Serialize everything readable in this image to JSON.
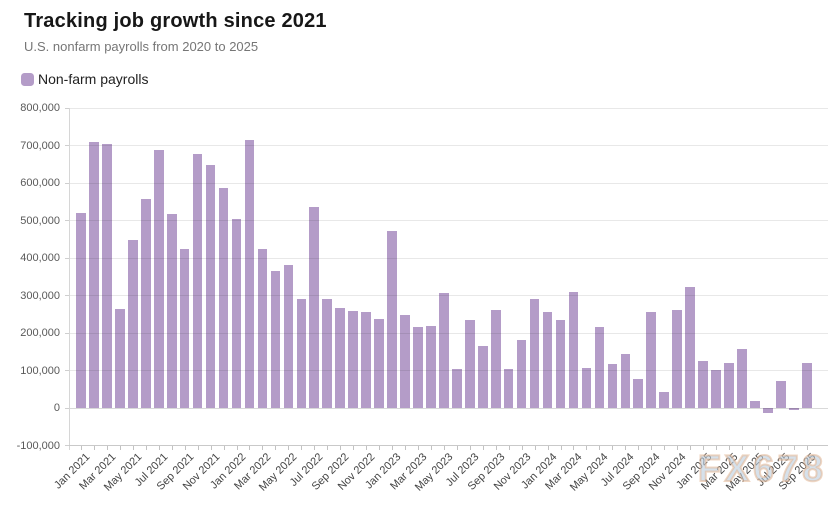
{
  "header": {
    "title": "Tracking job growth since 2021",
    "subtitle": "U.S. nonfarm payrolls from 2020 to 2025"
  },
  "legend": {
    "label": "Non-farm payrolls",
    "swatch_color": "#b49cc8"
  },
  "watermark": {
    "text": "FX678"
  },
  "chart_data": {
    "type": "bar",
    "title": "Tracking job growth since 2021",
    "subtitle": "U.S. nonfarm payrolls from 2020 to 2025",
    "series_name": "Non-farm payrolls",
    "bar_color": "#b49cc8",
    "grid": true,
    "legend_position": "top-left",
    "ylim": [
      -100000,
      800000
    ],
    "ytick_step": 100000,
    "ytick_labels": [
      "800,000",
      "700,000",
      "600,000",
      "500,000",
      "400,000",
      "300,000",
      "200,000",
      "100,000",
      "0",
      "-100,000"
    ],
    "xtick_every": 2,
    "categories": [
      "Jan 2021",
      "Feb 2021",
      "Mar 2021",
      "Apr 2021",
      "May 2021",
      "Jun 2021",
      "Jul 2021",
      "Aug 2021",
      "Sep 2021",
      "Oct 2021",
      "Nov 2021",
      "Dec 2021",
      "Jan 2022",
      "Feb 2022",
      "Mar 2022",
      "Apr 2022",
      "May 2022",
      "Jun 2022",
      "Jul 2022",
      "Aug 2022",
      "Sep 2022",
      "Oct 2022",
      "Nov 2022",
      "Dec 2022",
      "Jan 2023",
      "Feb 2023",
      "Mar 2023",
      "Apr 2023",
      "May 2023",
      "Jun 2023",
      "Jul 2023",
      "Aug 2023",
      "Sep 2023",
      "Oct 2023",
      "Nov 2023",
      "Dec 2023",
      "Jan 2024",
      "Feb 2024",
      "Mar 2024",
      "Apr 2024",
      "May 2024",
      "Jun 2024",
      "Jul 2024",
      "Aug 2024",
      "Sep 2024",
      "Oct 2024",
      "Nov 2024",
      "Dec 2024",
      "Jan 2025",
      "Feb 2025",
      "Mar 2025",
      "Apr 2025",
      "May 2025",
      "Jun 2025",
      "Jul 2025",
      "Aug 2025",
      "Sep 2025"
    ],
    "values": [
      520000,
      710000,
      704000,
      263000,
      447000,
      557000,
      689000,
      517000,
      424000,
      677000,
      647000,
      588000,
      504000,
      714000,
      425000,
      365000,
      382000,
      290000,
      537000,
      290000,
      266000,
      260000,
      255000,
      238000,
      472000,
      248000,
      217000,
      218000,
      306000,
      105000,
      236000,
      165000,
      262000,
      105000,
      182000,
      290000,
      256000,
      236000,
      310000,
      108000,
      216000,
      118000,
      144000,
      78000,
      255000,
      44000,
      262000,
      323000,
      125000,
      102000,
      120000,
      158000,
      19000,
      -13000,
      73000,
      -4000,
      119000
    ]
  }
}
